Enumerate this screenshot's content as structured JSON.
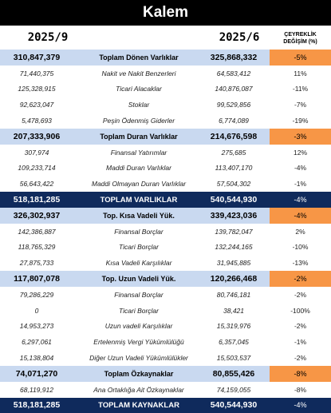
{
  "title": "Kalem",
  "header": {
    "left_period": "2025/9",
    "right_period": "2025/6",
    "change_line1": "ÇEYREKLİK",
    "change_line2": "DEĞİŞİM (%)"
  },
  "rows": [
    {
      "type": "section",
      "left": "310,847,379",
      "label": "Toplam Dönen Varlıklar",
      "right": "325,868,332",
      "change": "-5%"
    },
    {
      "type": "detail",
      "left": "71,440,375",
      "label": "Nakit ve Nakit Benzerleri",
      "right": "64,583,412",
      "change": "11%"
    },
    {
      "type": "detail",
      "left": "125,328,915",
      "label": "Ticari Alacaklar",
      "right": "140,876,087",
      "change": "-11%"
    },
    {
      "type": "detail",
      "left": "92,623,047",
      "label": "Stoklar",
      "right": "99,529,856",
      "change": "-7%"
    },
    {
      "type": "detail",
      "left": "5,478,693",
      "label": "Peşin Ödenmiş Giderler",
      "right": "6,774,089",
      "change": "-19%"
    },
    {
      "type": "section",
      "left": "207,333,906",
      "label": "Toplam Duran Varlıklar",
      "right": "214,676,598",
      "change": "-3%"
    },
    {
      "type": "detail",
      "left": "307,974",
      "label": "Finansal Yatırımlar",
      "right": "275,685",
      "change": "12%"
    },
    {
      "type": "detail",
      "left": "109,233,714",
      "label": "Maddi Duran Varlıklar",
      "right": "113,407,170",
      "change": "-4%"
    },
    {
      "type": "detail",
      "left": "56,643,422",
      "label": "Maddi Olmayan Duran Varlıklar",
      "right": "57,504,302",
      "change": "-1%"
    },
    {
      "type": "total",
      "left": "518,181,285",
      "label": "TOPLAM VARLIKLAR",
      "right": "540,544,930",
      "change": "-4%"
    },
    {
      "type": "section",
      "left": "326,302,937",
      "label": "Top. Kısa Vadeli Yük.",
      "right": "339,423,036",
      "change": "-4%"
    },
    {
      "type": "detail",
      "left": "142,386,887",
      "label": "Finansal Borçlar",
      "right": "139,782,047",
      "change": "2%"
    },
    {
      "type": "detail",
      "left": "118,765,329",
      "label": "Ticari Borçlar",
      "right": "132,244,165",
      "change": "-10%"
    },
    {
      "type": "detail",
      "left": "27,875,733",
      "label": "Kısa Vadeli Karşılıklar",
      "right": "31,945,885",
      "change": "-13%"
    },
    {
      "type": "section",
      "left": "117,807,078",
      "label": "Top. Uzun Vadeli Yük.",
      "right": "120,266,468",
      "change": "-2%"
    },
    {
      "type": "detail",
      "left": "79,286,229",
      "label": "Finansal Borçlar",
      "right": "80,746,181",
      "change": "-2%"
    },
    {
      "type": "detail",
      "left": "0",
      "label": "Ticari Borçlar",
      "right": "38,421",
      "change": "-100%"
    },
    {
      "type": "detail",
      "left": "14,953,273",
      "label": "Uzun vadeli Karşılıklar",
      "right": "15,319,976",
      "change": "-2%"
    },
    {
      "type": "detail",
      "left": "6,297,061",
      "label": "Ertelenmiş Vergi Yükümlülüğü",
      "right": "6,357,045",
      "change": "-1%"
    },
    {
      "type": "detail",
      "left": "15,138,804",
      "label": "Diğer Uzun Vadeli Yükümlülükler",
      "right": "15,503,537",
      "change": "-2%"
    },
    {
      "type": "section",
      "left": "74,071,270",
      "label": "Toplam Özkaynaklar",
      "right": "80,855,426",
      "change": "-8%"
    },
    {
      "type": "detail",
      "left": "68,119,912",
      "label": "Ana Ortaklığa Ait Özkaynaklar",
      "right": "74,159,055",
      "change": "-8%"
    },
    {
      "type": "total",
      "left": "518,181,285",
      "label": "TOPLAM KAYNAKLAR",
      "right": "540,544,930",
      "change": "-4%"
    }
  ],
  "colors": {
    "title_bg": "#000000",
    "section_bg": "#c9d9f0",
    "section_change_bg": "#f79646",
    "total_bg": "#0f2a5c"
  }
}
